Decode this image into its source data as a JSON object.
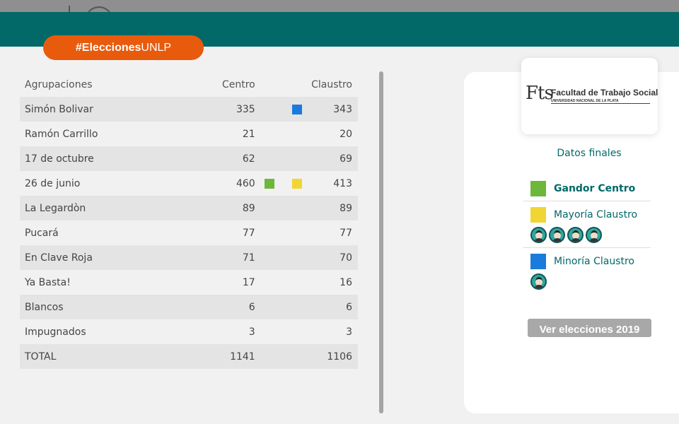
{
  "header": {
    "hashtag_bold": "#Elecciones",
    "hashtag_rest": "UNLP"
  },
  "table": {
    "headers": {
      "name": "Agrupaciones",
      "centro": "Centro",
      "claustro": "Claustro"
    },
    "rows": [
      {
        "name": "Simón Bolivar",
        "centro": "335",
        "claustro": "343",
        "claustro_marker": "#1a7bdc"
      },
      {
        "name": "Ramón Carrillo",
        "centro": "21",
        "claustro": "20"
      },
      {
        "name": "17 de octubre",
        "centro": "62",
        "claustro": "69"
      },
      {
        "name": "26 de junio",
        "centro": "460",
        "claustro": "413",
        "centro_marker": "#6db73a",
        "claustro_marker": "#f1d534"
      },
      {
        "name": "La Legardòn",
        "centro": "89",
        "claustro": "89"
      },
      {
        "name": "Pucará",
        "centro": "77",
        "claustro": "77"
      },
      {
        "name": "En Clave Roja",
        "centro": "71",
        "claustro": "70"
      },
      {
        "name": "Ya Basta!",
        "centro": "17",
        "claustro": "16"
      },
      {
        "name": "Blancos",
        "centro": "6",
        "claustro": "6"
      },
      {
        "name": "Impugnados",
        "centro": "3",
        "claustro": "3"
      },
      {
        "name": "TOTAL",
        "centro": "1141",
        "claustro": "1106"
      }
    ]
  },
  "logo": {
    "mark": "Fts",
    "title": "Facultad de Trabajo Social",
    "subtitle": "UNIVERSIDAD NACIONAL DE LA PLATA"
  },
  "panel": {
    "title": "Datos finales",
    "legend": [
      {
        "label": "Gandor Centro",
        "color": "#6db73a",
        "avatars": 0
      },
      {
        "label": "Mayoría Claustro",
        "color": "#f1d534",
        "avatars": 4
      },
      {
        "label": "Minoría Claustro",
        "color": "#1a7bdc",
        "avatars": 1
      }
    ],
    "button": "Ver elecciones 2019"
  },
  "colors": {
    "teal": "#036868",
    "orange": "#e85a0c"
  }
}
